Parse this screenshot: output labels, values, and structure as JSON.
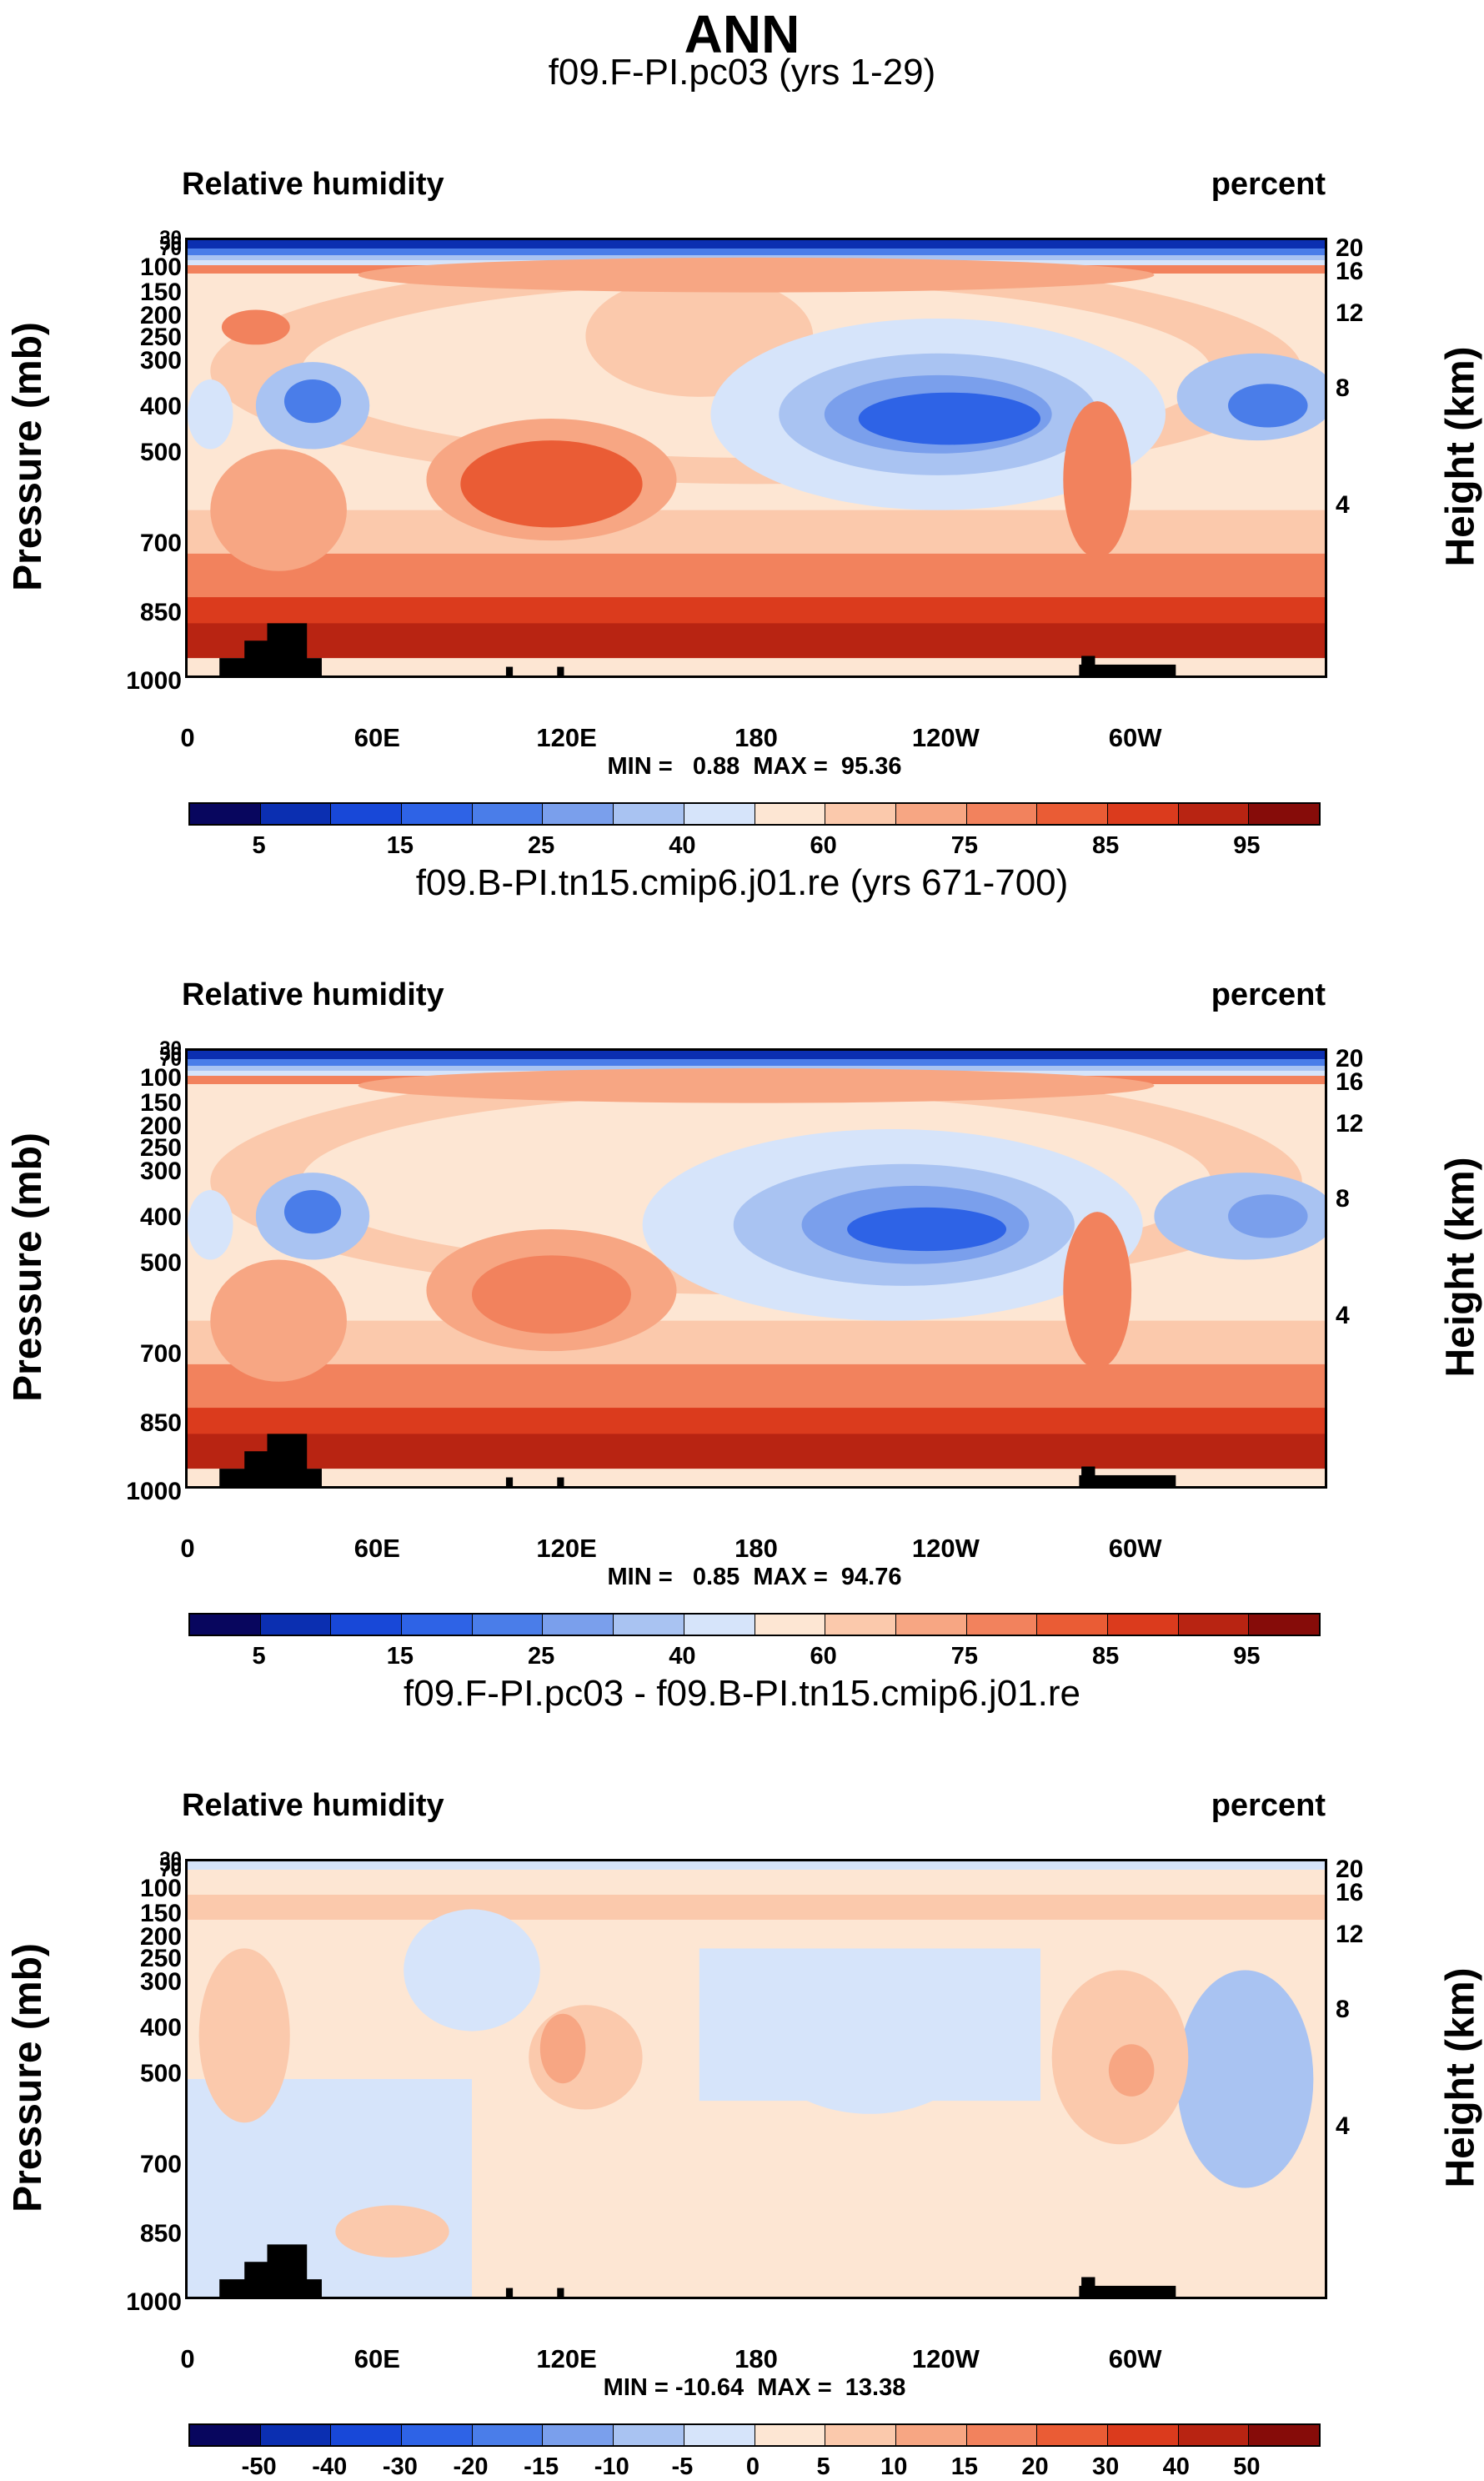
{
  "figure_title": "ANN",
  "chart_data": [
    {
      "type": "heatmap",
      "title": "f09.F-PI.pc03 (yrs 1-29)",
      "left_label": "Relative humidity",
      "right_label": "percent",
      "ylabel": "Pressure (mb)",
      "y2label": "Height (km)",
      "pressure_ticks": [
        "30",
        "50",
        "70",
        "100",
        "150",
        "200",
        "250",
        "300",
        "400",
        "500",
        "700",
        "850",
        "1000"
      ],
      "height_ticks": [
        "20",
        "16",
        "12",
        "8",
        "4"
      ],
      "x_ticks": [
        "0",
        "60E",
        "120E",
        "180",
        "120W",
        "60W"
      ],
      "min": "0.88",
      "max": "95.36",
      "minmax_text": "MIN =   0.88  MAX =  95.36",
      "colorbar_labels": [
        "5",
        "15",
        "25",
        "40",
        "60",
        "75",
        "85",
        "95"
      ],
      "colorbar_colors": [
        "#08065e",
        "#0b2fb1",
        "#1848d8",
        "#2e63e6",
        "#4a7de9",
        "#7a9fec",
        "#a9c3f2",
        "#d6e4fa",
        "#fde6d3",
        "#fbc9ac",
        "#f7a683",
        "#f2825d",
        "#ea5c35",
        "#db3b1d",
        "#b82412",
        "#860c09"
      ]
    },
    {
      "type": "heatmap",
      "title": "f09.B-PI.tn15.cmip6.j01.re (yrs 671-700)",
      "left_label": "Relative humidity",
      "right_label": "percent",
      "ylabel": "Pressure (mb)",
      "y2label": "Height (km)",
      "pressure_ticks": [
        "30",
        "50",
        "70",
        "100",
        "150",
        "200",
        "250",
        "300",
        "400",
        "500",
        "700",
        "850",
        "1000"
      ],
      "height_ticks": [
        "20",
        "16",
        "12",
        "8",
        "4"
      ],
      "x_ticks": [
        "0",
        "60E",
        "120E",
        "180",
        "120W",
        "60W"
      ],
      "min": "0.85",
      "max": "94.76",
      "minmax_text": "MIN =   0.85  MAX =  94.76",
      "colorbar_labels": [
        "5",
        "15",
        "25",
        "40",
        "60",
        "75",
        "85",
        "95"
      ],
      "colorbar_colors": [
        "#08065e",
        "#0b2fb1",
        "#1848d8",
        "#2e63e6",
        "#4a7de9",
        "#7a9fec",
        "#a9c3f2",
        "#d6e4fa",
        "#fde6d3",
        "#fbc9ac",
        "#f7a683",
        "#f2825d",
        "#ea5c35",
        "#db3b1d",
        "#b82412",
        "#860c09"
      ]
    },
    {
      "type": "heatmap",
      "title": "f09.F-PI.pc03 - f09.B-PI.tn15.cmip6.j01.re",
      "left_label": "Relative humidity",
      "right_label": "percent",
      "ylabel": "Pressure (mb)",
      "y2label": "Height (km)",
      "pressure_ticks": [
        "30",
        "50",
        "70",
        "100",
        "150",
        "200",
        "250",
        "300",
        "400",
        "500",
        "700",
        "850",
        "1000"
      ],
      "height_ticks": [
        "20",
        "16",
        "12",
        "8",
        "4"
      ],
      "x_ticks": [
        "0",
        "60E",
        "120E",
        "180",
        "120W",
        "60W"
      ],
      "min": "-10.64",
      "max": "13.38",
      "minmax_text": "MIN = -10.64  MAX =  13.38",
      "colorbar_labels": [
        "-50",
        "-40",
        "-30",
        "-20",
        "-15",
        "-10",
        "-5",
        "0",
        "5",
        "10",
        "15",
        "20",
        "30",
        "40",
        "50"
      ],
      "colorbar_colors": [
        "#08065e",
        "#0b2fb1",
        "#1848d8",
        "#2e63e6",
        "#4a7de9",
        "#7a9fec",
        "#a9c3f2",
        "#d6e4fa",
        "#fde6d3",
        "#fbc9ac",
        "#f7a683",
        "#f2825d",
        "#ea5c35",
        "#db3b1d",
        "#b82412",
        "#860c09"
      ]
    }
  ]
}
